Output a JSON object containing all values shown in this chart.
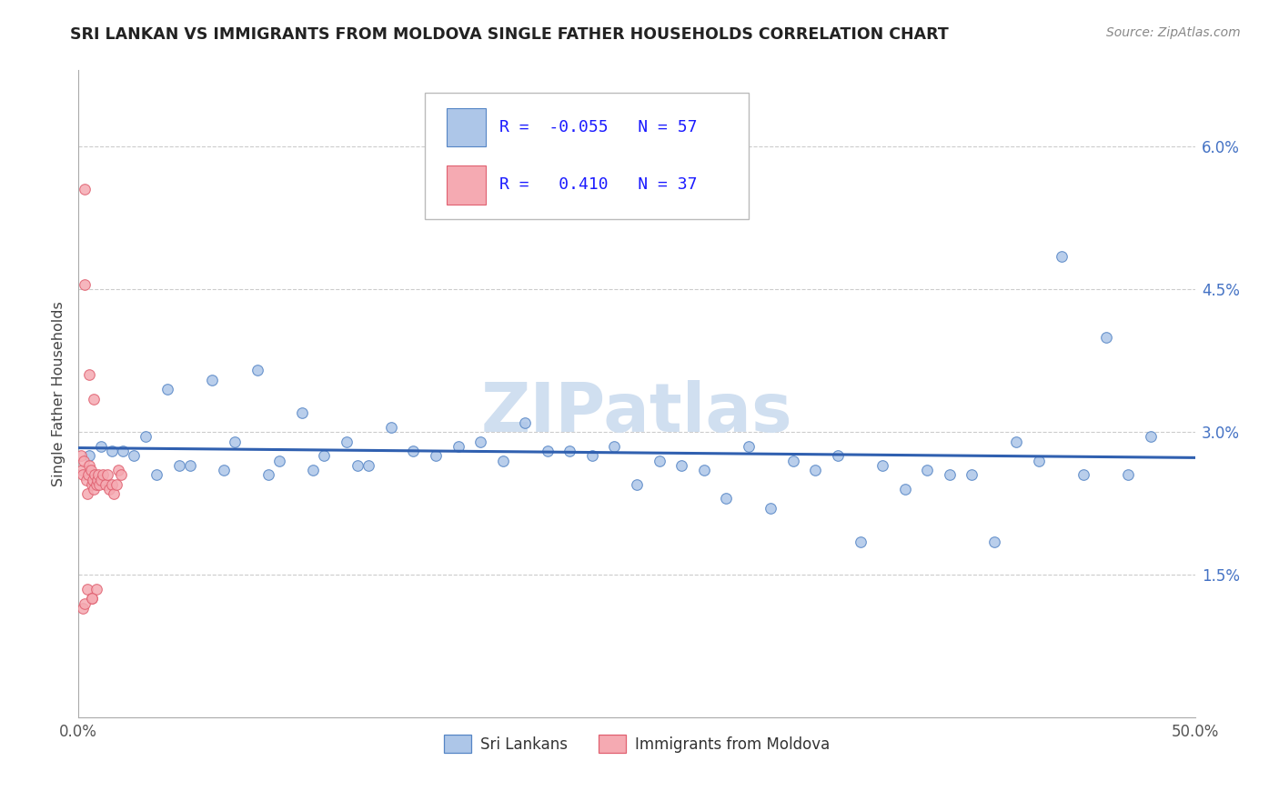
{
  "title": "SRI LANKAN VS IMMIGRANTS FROM MOLDOVA SINGLE FATHER HOUSEHOLDS CORRELATION CHART",
  "source": "Source: ZipAtlas.com",
  "ylabel": "Single Father Households",
  "xmin": 0.0,
  "xmax": 50.0,
  "ymin": 0.0,
  "ymax": 6.8,
  "yticks": [
    1.5,
    3.0,
    4.5,
    6.0
  ],
  "ytick_labels": [
    "1.5%",
    "3.0%",
    "4.5%",
    "6.0%"
  ],
  "xticks": [
    0,
    10,
    20,
    30,
    40,
    50
  ],
  "xtick_labels": [
    "0.0%",
    "",
    "",
    "",
    "",
    "50.0%"
  ],
  "r_sri": -0.055,
  "n_sri": 57,
  "r_mol": 0.41,
  "n_mol": 37,
  "sri_face_color": "#adc6e8",
  "mol_face_color": "#f5aab2",
  "sri_edge_color": "#5585c5",
  "mol_edge_color": "#e06070",
  "sri_line_color": "#3060b0",
  "mol_line_color": "#e06070",
  "watermark_color": "#d0dff0",
  "sri_scatter_x": [
    1.0,
    2.5,
    4.0,
    6.0,
    8.0,
    10.0,
    12.0,
    14.0,
    16.0,
    18.0,
    20.0,
    22.0,
    24.0,
    26.0,
    28.0,
    30.0,
    32.0,
    34.0,
    36.0,
    38.0,
    40.0,
    42.0,
    44.0,
    46.0,
    48.0,
    3.0,
    5.0,
    7.0,
    9.0,
    11.0,
    13.0,
    15.0,
    17.0,
    19.0,
    21.0,
    23.0,
    25.0,
    27.0,
    29.0,
    31.0,
    33.0,
    35.0,
    37.0,
    39.0,
    41.0,
    43.0,
    45.0,
    47.0,
    0.5,
    1.5,
    2.0,
    3.5,
    4.5,
    6.5,
    8.5,
    10.5,
    12.5
  ],
  "sri_scatter_y": [
    2.85,
    2.75,
    3.45,
    3.55,
    3.65,
    3.2,
    2.9,
    3.05,
    2.75,
    2.9,
    3.1,
    2.8,
    2.85,
    2.7,
    2.6,
    2.85,
    2.7,
    2.75,
    2.65,
    2.6,
    2.55,
    2.9,
    4.85,
    4.0,
    2.95,
    2.95,
    2.65,
    2.9,
    2.7,
    2.75,
    2.65,
    2.8,
    2.85,
    2.7,
    2.8,
    2.75,
    2.45,
    2.65,
    2.3,
    2.2,
    2.6,
    1.85,
    2.4,
    2.55,
    1.85,
    2.7,
    2.55,
    2.55,
    2.75,
    2.8,
    2.8,
    2.55,
    2.65,
    2.6,
    2.55,
    2.6,
    2.65
  ],
  "mol_scatter_x": [
    0.1,
    0.15,
    0.2,
    0.25,
    0.3,
    0.35,
    0.4,
    0.45,
    0.5,
    0.55,
    0.6,
    0.65,
    0.7,
    0.75,
    0.8,
    0.85,
    0.9,
    0.95,
    1.0,
    1.1,
    1.2,
    1.3,
    1.4,
    1.5,
    1.6,
    1.7,
    1.8,
    1.9,
    0.3,
    0.5,
    0.7,
    0.2,
    0.4,
    0.6,
    0.8,
    0.3,
    0.6
  ],
  "mol_scatter_y": [
    2.75,
    2.6,
    2.55,
    2.7,
    5.55,
    2.5,
    2.35,
    2.55,
    2.65,
    2.6,
    2.45,
    2.5,
    2.4,
    2.55,
    2.45,
    2.5,
    2.55,
    2.45,
    2.5,
    2.55,
    2.45,
    2.55,
    2.4,
    2.45,
    2.35,
    2.45,
    2.6,
    2.55,
    4.55,
    3.6,
    3.35,
    1.15,
    1.35,
    1.25,
    1.35,
    1.2,
    1.25
  ]
}
